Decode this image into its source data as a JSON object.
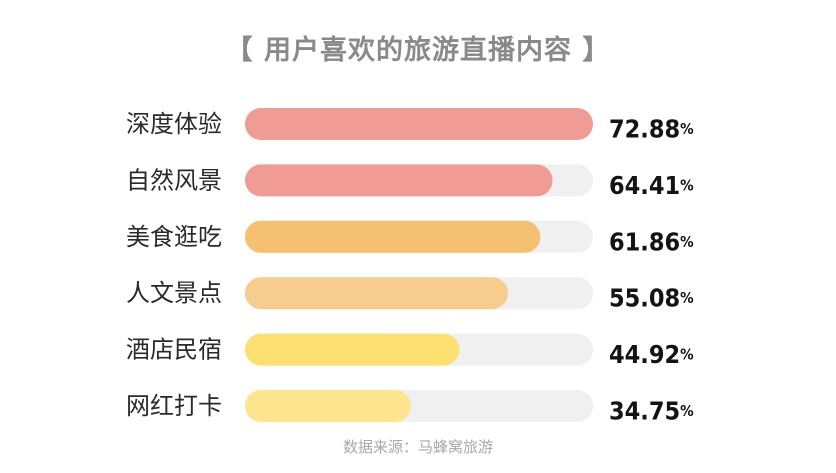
{
  "title": "【 用户喜欢的旅游直播内容 】",
  "source": "数据来源：马蜂窝旅游",
  "chart_data": {
    "type": "bar",
    "orientation": "horizontal",
    "title": "【 用户喜欢的旅游直播内容 】",
    "categories": [
      "深度体验",
      "自然风景",
      "美食逛吃",
      "人文景点",
      "酒店民宿",
      "网红打卡"
    ],
    "values": [
      72.88,
      64.41,
      61.86,
      55.08,
      44.92,
      34.75
    ],
    "value_labels": [
      "72.88",
      "64.41",
      "61.86",
      "55.08",
      "44.92",
      "34.75"
    ],
    "unit": "%",
    "xlim": [
      0,
      72.88
    ],
    "grid": false,
    "colors": [
      "#f09c95",
      "#f09c95",
      "#f5c06f",
      "#f7cd8f",
      "#fde070",
      "#fde58e"
    ],
    "track_color": "#f0f0f0"
  }
}
